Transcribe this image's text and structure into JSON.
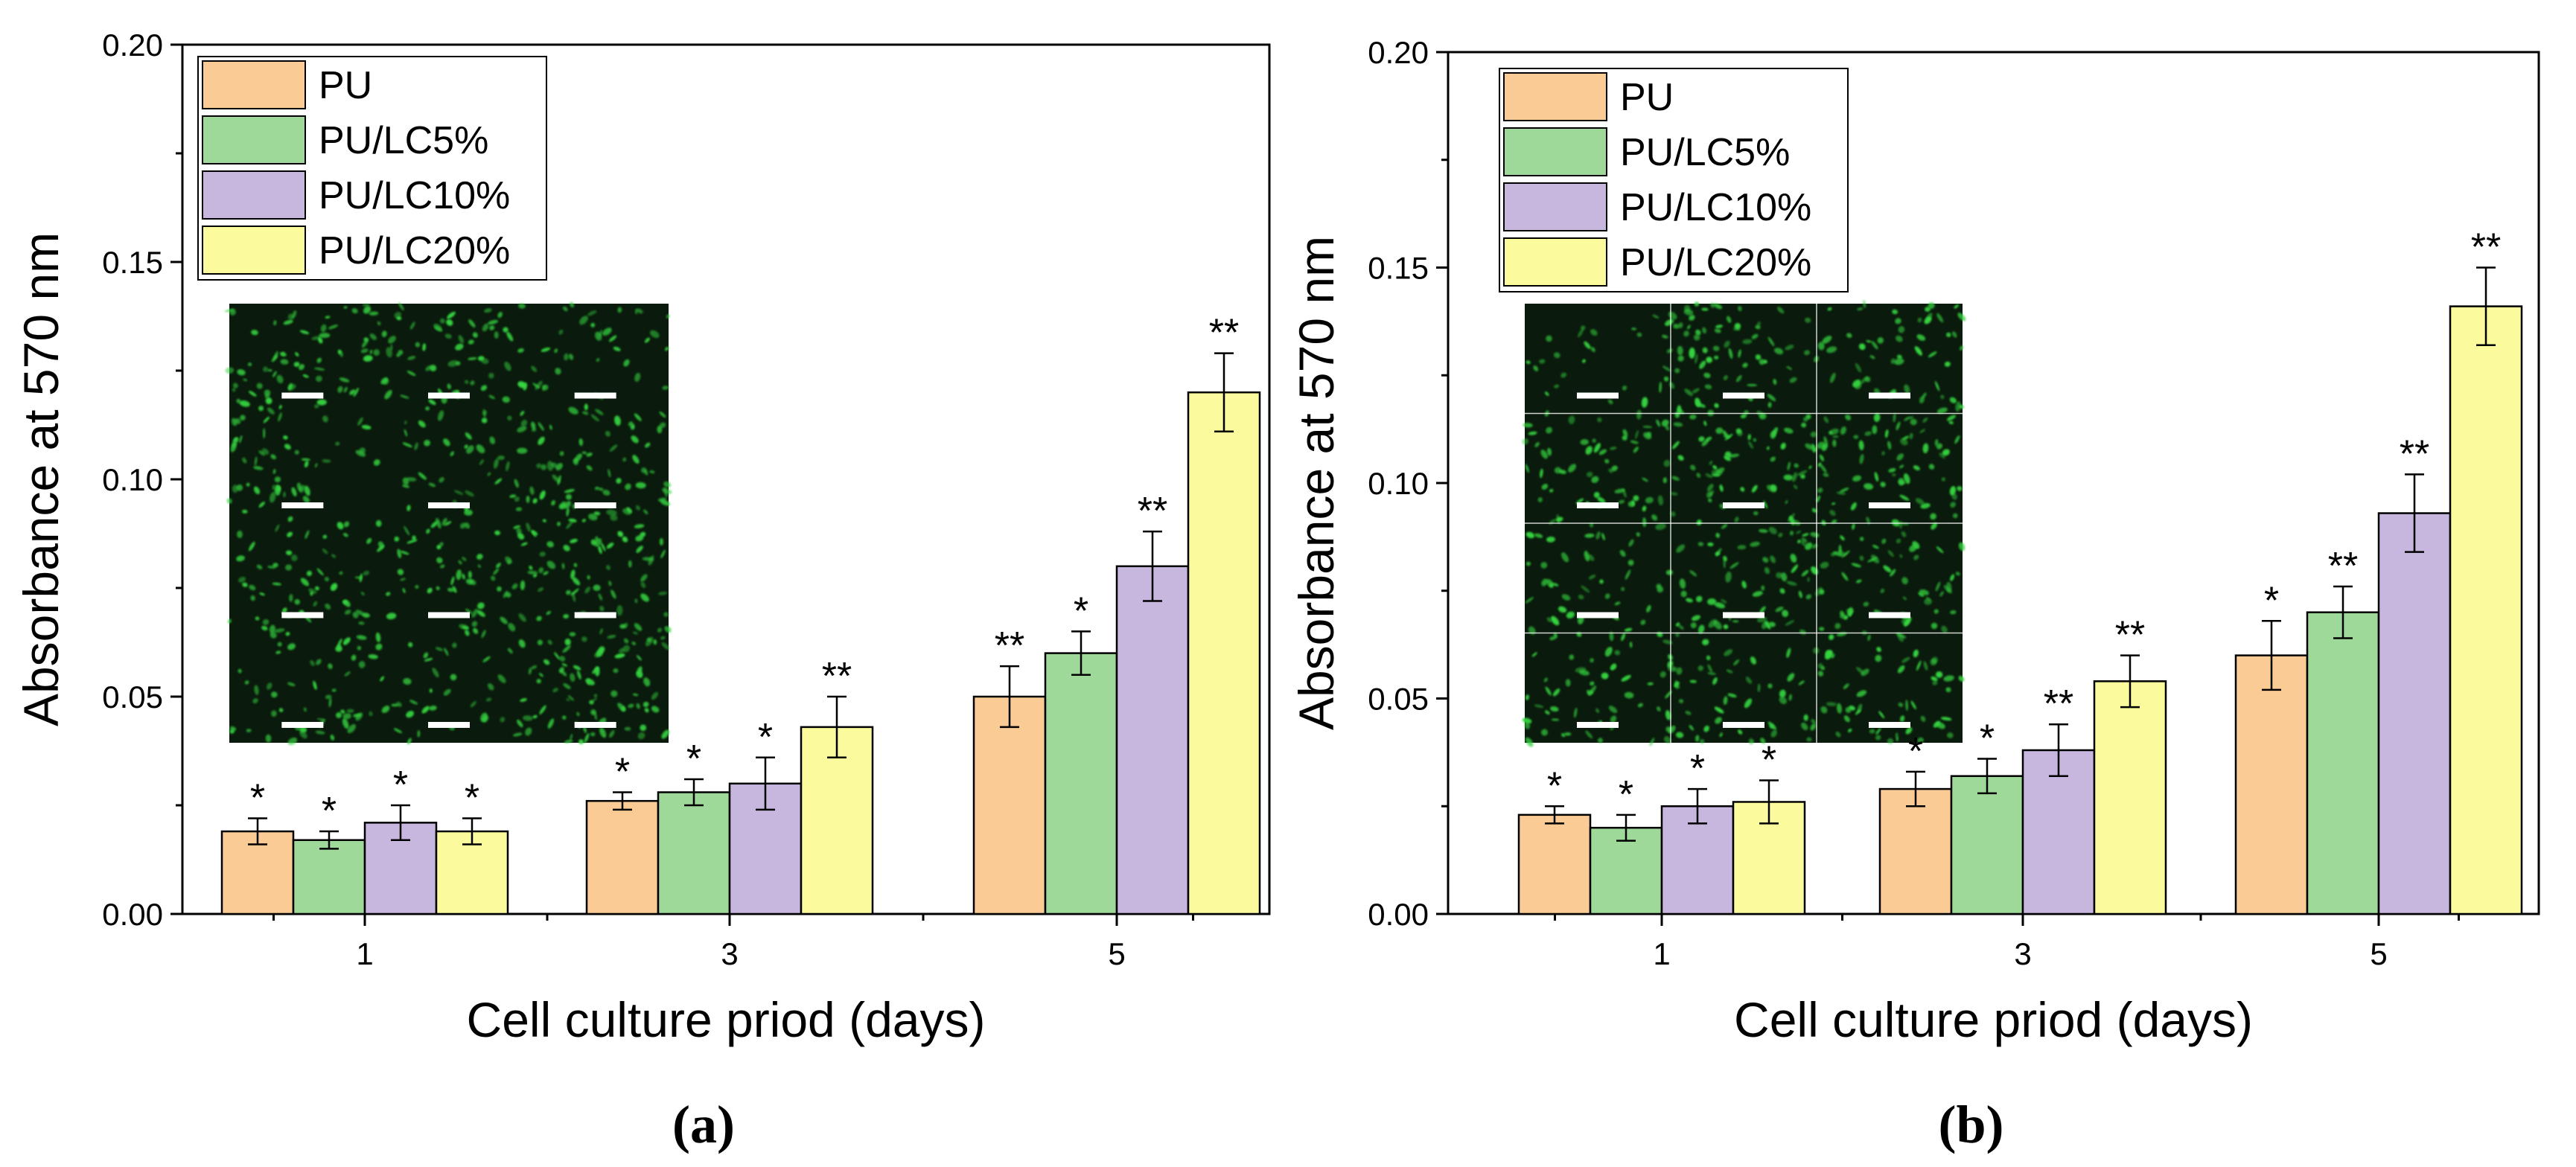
{
  "colors": {
    "PU": "#FBCB96",
    "PU/LC5%": "#9ED99A",
    "PU/LC10%": "#C7B6DD",
    "PU/LC20%": "#FBFB9E",
    "inset_bg": "#0a1a0c",
    "cell": "#36d43f"
  },
  "chart_data": [
    {
      "type": "bar",
      "panel_label": "(a)",
      "xlabel": "Cell culture priod (days)",
      "ylabel": "Absorbance at 570 nm",
      "ylim": [
        0,
        0.2
      ],
      "yticks": [
        "0.00",
        "0.05",
        "0.10",
        "0.15",
        "0.20"
      ],
      "categories": [
        "1",
        "3",
        "5"
      ],
      "legend_position": "top-left",
      "inset": "fluorescence micrographs, 4 rows x 3 columns, with scale bars",
      "series": [
        {
          "name": "PU",
          "values": [
            0.019,
            0.026,
            0.05
          ],
          "errors": [
            0.003,
            0.002,
            0.007
          ],
          "sig": [
            "*",
            "*",
            "**"
          ]
        },
        {
          "name": "PU/LC5%",
          "values": [
            0.017,
            0.028,
            0.06
          ],
          "errors": [
            0.002,
            0.003,
            0.005
          ],
          "sig": [
            "*",
            "*",
            "*"
          ]
        },
        {
          "name": "PU/LC10%",
          "values": [
            0.021,
            0.03,
            0.08
          ],
          "errors": [
            0.004,
            0.006,
            0.008
          ],
          "sig": [
            "*",
            "*",
            "**"
          ]
        },
        {
          "name": "PU/LC20%",
          "values": [
            0.019,
            0.043,
            0.12
          ],
          "errors": [
            0.003,
            0.007,
            0.009
          ],
          "sig": [
            "*",
            "**",
            "**"
          ]
        }
      ]
    },
    {
      "type": "bar",
      "panel_label": "(b)",
      "xlabel": "Cell culture priod (days)",
      "ylabel": "Absorbance at 570 nm",
      "ylim": [
        0,
        0.2
      ],
      "yticks": [
        "0.00",
        "0.05",
        "0.10",
        "0.15",
        "0.20"
      ],
      "categories": [
        "1",
        "3",
        "5"
      ],
      "legend_position": "top-left",
      "inset": "fluorescence micrographs, 4 rows x 3 columns, with scale bars",
      "series": [
        {
          "name": "PU",
          "values": [
            0.023,
            0.029,
            0.06
          ],
          "errors": [
            0.002,
            0.004,
            0.008
          ],
          "sig": [
            "*",
            "*",
            "*"
          ]
        },
        {
          "name": "PU/LC5%",
          "values": [
            0.02,
            0.032,
            0.07
          ],
          "errors": [
            0.003,
            0.004,
            0.006
          ],
          "sig": [
            "*",
            "*",
            "**"
          ]
        },
        {
          "name": "PU/LC10%",
          "values": [
            0.025,
            0.038,
            0.093
          ],
          "errors": [
            0.004,
            0.006,
            0.009
          ],
          "sig": [
            "*",
            "**",
            "**"
          ]
        },
        {
          "name": "PU/LC20%",
          "values": [
            0.026,
            0.054,
            0.141
          ],
          "errors": [
            0.005,
            0.006,
            0.009
          ],
          "sig": [
            "*",
            "**",
            "**"
          ]
        }
      ]
    }
  ]
}
